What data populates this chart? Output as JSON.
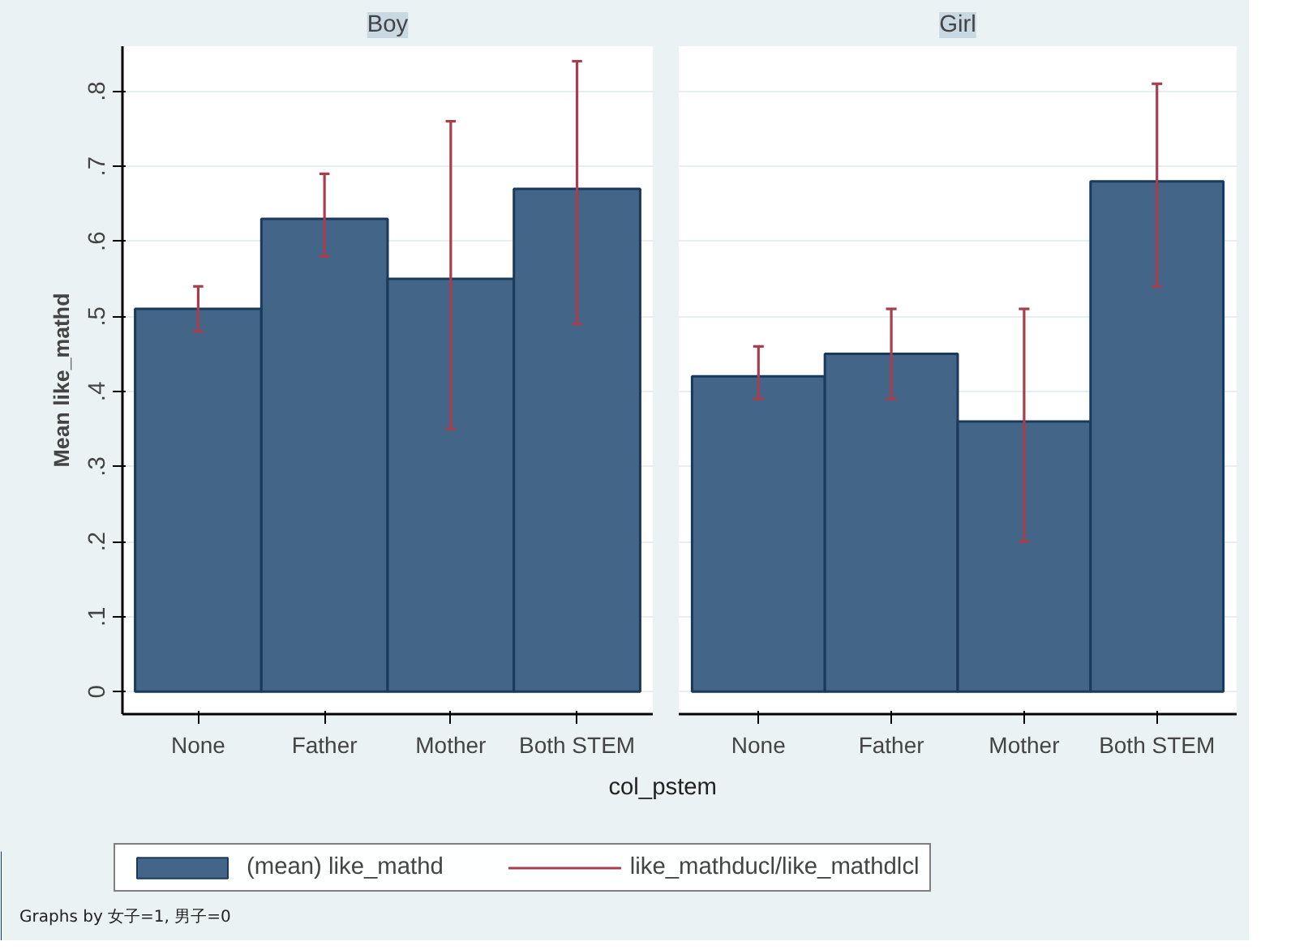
{
  "chart_data": [
    {
      "type": "bar",
      "title": "Boy",
      "xlabel": "col_pstem",
      "ylabel": "Mean like_mathd",
      "categories": [
        "None",
        "Father",
        "Mother",
        "Both STEM"
      ],
      "series": [
        {
          "name": "(mean) like_mathd",
          "color": "#436587",
          "values": [
            0.51,
            0.63,
            0.55,
            0.67
          ],
          "errors": [
            [
              0.48,
              0.54
            ],
            [
              0.58,
              0.69
            ],
            [
              0.35,
              0.76
            ],
            [
              0.49,
              0.84
            ]
          ]
        }
      ],
      "ylim": [
        -0.03,
        0.86
      ],
      "yticks": [
        0,
        {
          "value": 0.1,
          "label": ".1"
        },
        {
          "value": 0.2,
          "label": ".2"
        },
        {
          "value": 0.3,
          "label": ".3"
        },
        {
          "value": 0.4,
          "label": ".4"
        },
        {
          "value": 0.5,
          "label": ".5"
        },
        {
          "value": 0.6,
          "label": ".6"
        },
        {
          "value": 0.7,
          "label": ".7"
        },
        {
          "value": 0.8,
          "label": ".8"
        }
      ],
      "grid": "y",
      "legend": "bottom",
      "annotations": [
        "like_mathducl/like_mathdlcl",
        "Graphs by 女子=1, 男子=0"
      ]
    },
    {
      "type": "bar",
      "title": "Girl",
      "categories": [
        "None",
        "Father",
        "Mother",
        "Both STEM"
      ],
      "series": [
        {
          "color": "#436587",
          "values": [
            0.42,
            0.45,
            0.36,
            0.68
          ],
          "errors": [
            [
              0.39,
              0.46
            ],
            [
              0.39,
              0.51
            ],
            [
              0.2,
              0.51
            ],
            [
              0.54,
              0.81
            ]
          ]
        }
      ],
      "ylim": [
        -0.03,
        0.86
      ],
      "yticks": [
        0,
        0.1,
        0.2,
        0.3,
        0.4,
        0.5,
        0.6,
        0.7,
        0.8
      ],
      "grid": "y",
      "tick_labels": "x"
    }
  ]
}
